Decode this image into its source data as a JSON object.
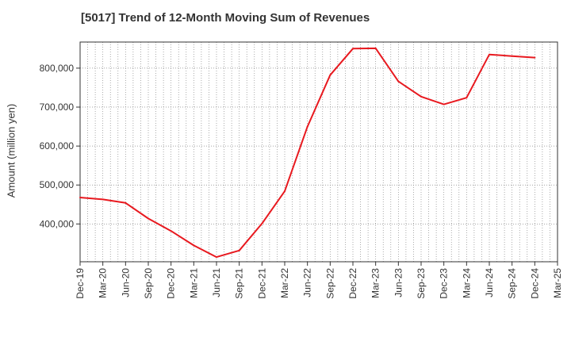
{
  "title": "[5017]  Trend of 12-Month Moving Sum of Revenues",
  "chart_data": {
    "type": "line",
    "title": "[5017]  Trend of 12-Month Moving Sum of Revenues",
    "xlabel": "",
    "ylabel": "Amount (million yen)",
    "ylim": [
      303000,
      867000
    ],
    "yticks": [
      400000,
      500000,
      600000,
      700000,
      800000
    ],
    "ytick_labels": [
      "400,000",
      "500,000",
      "600,000",
      "700,000",
      "800,000"
    ],
    "grid": true,
    "line_color": "#e8191f",
    "categories": [
      "Dec-19",
      "Mar-20",
      "Jun-20",
      "Sep-20",
      "Dec-20",
      "Mar-21",
      "Jun-21",
      "Sep-21",
      "Dec-21",
      "Mar-22",
      "Jun-22",
      "Sep-22",
      "Dec-22",
      "Mar-23",
      "Jun-23",
      "Sep-23",
      "Dec-23",
      "Mar-24",
      "Jun-24",
      "Sep-24",
      "Dec-24",
      "Mar-25"
    ],
    "series": [
      {
        "values": [
          468000,
          463000,
          454000,
          414000,
          382000,
          345000,
          315000,
          332000,
          401000,
          484000,
          650000,
          782000,
          850000,
          851000,
          766000,
          727000,
          707000,
          724000,
          835000,
          831000,
          827000,
          null
        ]
      }
    ]
  }
}
